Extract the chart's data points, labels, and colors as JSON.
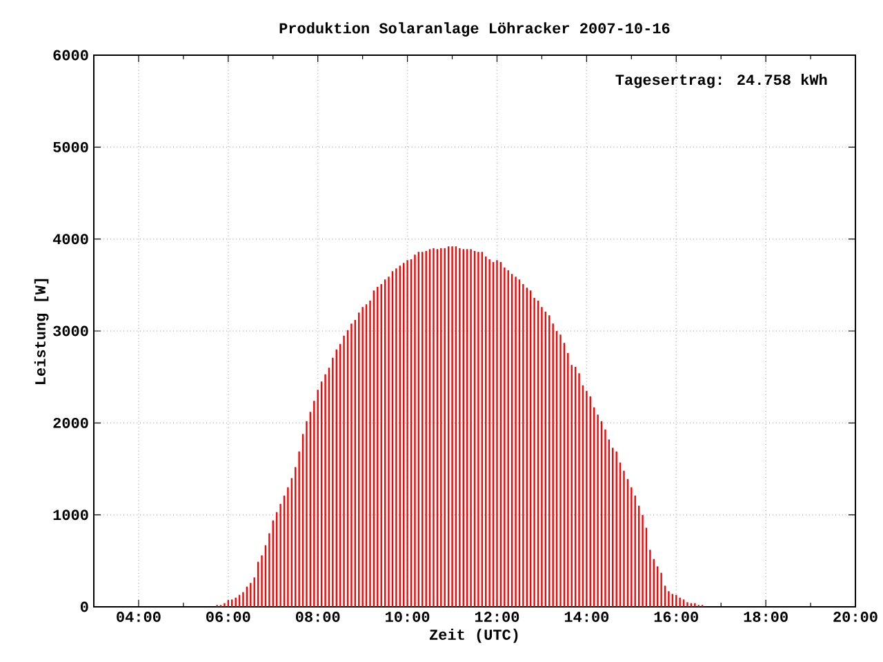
{
  "chart_data": {
    "type": "bar",
    "title": "Produktion Solaranlage Löhracker 2007-10-16",
    "xlabel": "Zeit (UTC)",
    "ylabel": "Leistung [W]",
    "annotations": [
      "Tagesertrag: 24.758 kWh"
    ],
    "x": [
      5.75,
      5.833,
      5.917,
      6,
      6.083,
      6.167,
      6.25,
      6.333,
      6.417,
      6.5,
      6.583,
      6.667,
      6.75,
      6.833,
      6.917,
      7,
      7.083,
      7.167,
      7.25,
      7.333,
      7.417,
      7.5,
      7.583,
      7.667,
      7.75,
      7.833,
      7.917,
      8,
      8.083,
      8.167,
      8.25,
      8.333,
      8.417,
      8.5,
      8.583,
      8.667,
      8.75,
      8.833,
      8.917,
      9,
      9.083,
      9.167,
      9.25,
      9.333,
      9.417,
      9.5,
      9.583,
      9.667,
      9.75,
      9.833,
      9.917,
      10,
      10.083,
      10.167,
      10.25,
      10.333,
      10.417,
      10.5,
      10.583,
      10.667,
      10.75,
      10.833,
      10.917,
      11,
      11.083,
      11.167,
      11.25,
      11.333,
      11.417,
      11.5,
      11.583,
      11.667,
      11.75,
      11.833,
      11.917,
      12,
      12.083,
      12.167,
      12.25,
      12.333,
      12.417,
      12.5,
      12.583,
      12.667,
      12.75,
      12.833,
      12.917,
      13,
      13.083,
      13.167,
      13.25,
      13.333,
      13.417,
      13.5,
      13.583,
      13.667,
      13.75,
      13.833,
      13.917,
      14,
      14.083,
      14.167,
      14.25,
      14.333,
      14.417,
      14.5,
      14.583,
      14.667,
      14.75,
      14.833,
      14.917,
      15,
      15.083,
      15.167,
      15.25,
      15.333,
      15.417,
      15.5,
      15.583,
      15.667,
      15.75,
      15.833,
      15.917,
      16,
      16.083,
      16.167,
      16.25,
      16.333,
      16.417,
      16.5,
      16.583
    ],
    "values": [
      20,
      20,
      40,
      70,
      80,
      100,
      130,
      160,
      220,
      260,
      320,
      490,
      560,
      670,
      800,
      940,
      1030,
      1120,
      1210,
      1300,
      1400,
      1520,
      1690,
      1880,
      2020,
      2120,
      2240,
      2360,
      2450,
      2530,
      2600,
      2710,
      2800,
      2860,
      2950,
      3010,
      3080,
      3120,
      3200,
      3260,
      3290,
      3330,
      3440,
      3480,
      3510,
      3560,
      3590,
      3650,
      3680,
      3710,
      3740,
      3770,
      3780,
      3830,
      3860,
      3860,
      3870,
      3890,
      3900,
      3890,
      3900,
      3900,
      3920,
      3920,
      3920,
      3900,
      3890,
      3890,
      3890,
      3870,
      3860,
      3860,
      3810,
      3780,
      3750,
      3770,
      3750,
      3690,
      3660,
      3620,
      3590,
      3560,
      3510,
      3470,
      3440,
      3360,
      3330,
      3260,
      3210,
      3170,
      3080,
      3000,
      2960,
      2870,
      2760,
      2630,
      2610,
      2540,
      2410,
      2350,
      2290,
      2170,
      2090,
      2020,
      1930,
      1820,
      1730,
      1690,
      1570,
      1480,
      1390,
      1300,
      1210,
      1100,
      1000,
      860,
      620,
      520,
      440,
      370,
      230,
      170,
      140,
      130,
      100,
      80,
      50,
      40,
      40,
      20,
      20
    ],
    "color": "#ff0000",
    "xlim": [
      3,
      20
    ],
    "xticks": [
      {
        "value": 4,
        "label": "04:00"
      },
      {
        "value": 5,
        "label": null
      },
      {
        "value": 6,
        "label": "06:00"
      },
      {
        "value": 7,
        "label": null
      },
      {
        "value": 8,
        "label": "08:00"
      },
      {
        "value": 9,
        "label": null
      },
      {
        "value": 10,
        "label": "10:00"
      },
      {
        "value": 11,
        "label": null
      },
      {
        "value": 12,
        "label": "12:00"
      },
      {
        "value": 13,
        "label": null
      },
      {
        "value": 14,
        "label": "14:00"
      },
      {
        "value": 15,
        "label": null
      },
      {
        "value": 16,
        "label": "16:00"
      },
      {
        "value": 17,
        "label": null
      },
      {
        "value": 18,
        "label": "18:00"
      },
      {
        "value": 19,
        "label": null
      },
      {
        "value": 20,
        "label": "20:00"
      }
    ],
    "ylim": [
      0,
      6000
    ],
    "yticks": [
      0,
      1000,
      2000,
      3000,
      4000,
      5000,
      6000
    ],
    "grid": true
  }
}
